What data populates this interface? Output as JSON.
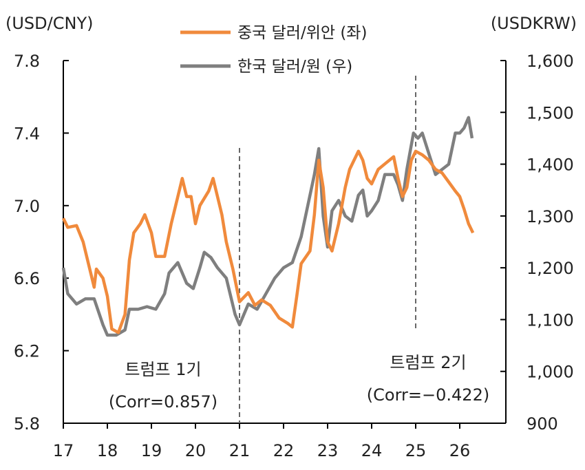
{
  "chart_data": {
    "type": "line",
    "left_axis_label": "(USD/CNY)",
    "right_axis_label": "(USDKRW)",
    "left_ylim": [
      5.8,
      7.8
    ],
    "left_ticks": [
      "7.8",
      "7.4",
      "7.0",
      "6.6",
      "6.2",
      "5.8"
    ],
    "right_ylim": [
      900,
      1600
    ],
    "right_ticks": [
      "1,600",
      "1,500",
      "1,400",
      "1,300",
      "1,200",
      "1,100",
      "1,000",
      "900"
    ],
    "x_ticks": [
      "17",
      "18",
      "19",
      "20",
      "21",
      "22",
      "23",
      "24",
      "25",
      "26"
    ],
    "xlim": [
      2017,
      2027
    ],
    "grid": false,
    "legend_placement": "top-center",
    "series": [
      {
        "name": "중국 달러/위안 (좌)",
        "axis": "left",
        "color": "#F08A3C",
        "points": [
          [
            2017.0,
            6.93
          ],
          [
            2017.1,
            6.88
          ],
          [
            2017.3,
            6.89
          ],
          [
            2017.45,
            6.8
          ],
          [
            2017.6,
            6.65
          ],
          [
            2017.7,
            6.55
          ],
          [
            2017.75,
            6.65
          ],
          [
            2017.9,
            6.6
          ],
          [
            2018.0,
            6.5
          ],
          [
            2018.1,
            6.32
          ],
          [
            2018.25,
            6.3
          ],
          [
            2018.4,
            6.4
          ],
          [
            2018.5,
            6.7
          ],
          [
            2018.6,
            6.85
          ],
          [
            2018.75,
            6.9
          ],
          [
            2018.85,
            6.95
          ],
          [
            2019.0,
            6.85
          ],
          [
            2019.1,
            6.72
          ],
          [
            2019.3,
            6.72
          ],
          [
            2019.45,
            6.9
          ],
          [
            2019.6,
            7.05
          ],
          [
            2019.7,
            7.15
          ],
          [
            2019.8,
            7.05
          ],
          [
            2019.9,
            7.05
          ],
          [
            2020.0,
            6.9
          ],
          [
            2020.1,
            7.0
          ],
          [
            2020.3,
            7.08
          ],
          [
            2020.4,
            7.15
          ],
          [
            2020.5,
            7.05
          ],
          [
            2020.6,
            6.95
          ],
          [
            2020.7,
            6.8
          ],
          [
            2020.85,
            6.65
          ],
          [
            2021.0,
            6.47
          ],
          [
            2021.2,
            6.52
          ],
          [
            2021.35,
            6.45
          ],
          [
            2021.5,
            6.48
          ],
          [
            2021.7,
            6.45
          ],
          [
            2021.9,
            6.38
          ],
          [
            2022.1,
            6.35
          ],
          [
            2022.2,
            6.33
          ],
          [
            2022.3,
            6.5
          ],
          [
            2022.4,
            6.68
          ],
          [
            2022.6,
            6.75
          ],
          [
            2022.7,
            6.95
          ],
          [
            2022.8,
            7.25
          ],
          [
            2022.9,
            7.1
          ],
          [
            2023.0,
            6.8
          ],
          [
            2023.1,
            6.75
          ],
          [
            2023.25,
            6.9
          ],
          [
            2023.4,
            7.1
          ],
          [
            2023.5,
            7.2
          ],
          [
            2023.6,
            7.25
          ],
          [
            2023.7,
            7.3
          ],
          [
            2023.8,
            7.25
          ],
          [
            2023.9,
            7.15
          ],
          [
            2024.0,
            7.12
          ],
          [
            2024.15,
            7.2
          ],
          [
            2024.3,
            7.23
          ],
          [
            2024.5,
            7.27
          ],
          [
            2024.6,
            7.15
          ],
          [
            2024.7,
            7.05
          ],
          [
            2024.8,
            7.1
          ],
          [
            2024.9,
            7.25
          ],
          [
            2025.0,
            7.3
          ],
          [
            2025.15,
            7.28
          ],
          [
            2025.3,
            7.25
          ],
          [
            2025.45,
            7.2
          ],
          [
            2025.6,
            7.18
          ],
          [
            2025.75,
            7.13
          ],
          [
            2025.9,
            7.08
          ],
          [
            2026.0,
            7.05
          ],
          [
            2026.1,
            6.98
          ],
          [
            2026.2,
            6.9
          ],
          [
            2026.3,
            6.85
          ]
        ]
      },
      {
        "name": "한국 달러/원 (우)",
        "axis": "right",
        "color": "#7F7F7F",
        "points": [
          [
            2017.0,
            1200
          ],
          [
            2017.1,
            1150
          ],
          [
            2017.3,
            1130
          ],
          [
            2017.5,
            1140
          ],
          [
            2017.7,
            1140
          ],
          [
            2017.9,
            1090
          ],
          [
            2018.0,
            1070
          ],
          [
            2018.2,
            1070
          ],
          [
            2018.4,
            1080
          ],
          [
            2018.5,
            1120
          ],
          [
            2018.7,
            1120
          ],
          [
            2018.9,
            1125
          ],
          [
            2019.1,
            1120
          ],
          [
            2019.3,
            1150
          ],
          [
            2019.4,
            1190
          ],
          [
            2019.6,
            1210
          ],
          [
            2019.8,
            1170
          ],
          [
            2019.95,
            1160
          ],
          [
            2020.1,
            1200
          ],
          [
            2020.2,
            1230
          ],
          [
            2020.35,
            1220
          ],
          [
            2020.5,
            1200
          ],
          [
            2020.7,
            1180
          ],
          [
            2020.9,
            1110
          ],
          [
            2021.0,
            1090
          ],
          [
            2021.2,
            1130
          ],
          [
            2021.4,
            1120
          ],
          [
            2021.6,
            1150
          ],
          [
            2021.8,
            1180
          ],
          [
            2022.0,
            1200
          ],
          [
            2022.2,
            1210
          ],
          [
            2022.4,
            1260
          ],
          [
            2022.5,
            1300
          ],
          [
            2022.7,
            1380
          ],
          [
            2022.8,
            1430
          ],
          [
            2022.9,
            1300
          ],
          [
            2023.0,
            1240
          ],
          [
            2023.1,
            1310
          ],
          [
            2023.25,
            1330
          ],
          [
            2023.4,
            1300
          ],
          [
            2023.55,
            1290
          ],
          [
            2023.7,
            1340
          ],
          [
            2023.8,
            1350
          ],
          [
            2023.9,
            1300
          ],
          [
            2024.0,
            1310
          ],
          [
            2024.15,
            1330
          ],
          [
            2024.3,
            1380
          ],
          [
            2024.5,
            1380
          ],
          [
            2024.6,
            1360
          ],
          [
            2024.7,
            1330
          ],
          [
            2024.8,
            1390
          ],
          [
            2024.95,
            1460
          ],
          [
            2025.05,
            1450
          ],
          [
            2025.15,
            1460
          ],
          [
            2025.3,
            1420
          ],
          [
            2025.45,
            1380
          ],
          [
            2025.6,
            1390
          ],
          [
            2025.75,
            1400
          ],
          [
            2025.9,
            1460
          ],
          [
            2026.0,
            1460
          ],
          [
            2026.1,
            1470
          ],
          [
            2026.2,
            1490
          ],
          [
            2026.28,
            1450
          ]
        ]
      }
    ],
    "markers": [
      {
        "x": 2021
      },
      {
        "x": 2025
      }
    ],
    "annotations": {
      "trump1_label": "트럼프 1기",
      "trump1_corr": "(Corr=0.857)",
      "trump2_label": "트럼프 2기",
      "trump2_corr": "(Corr=−0.422)"
    }
  }
}
